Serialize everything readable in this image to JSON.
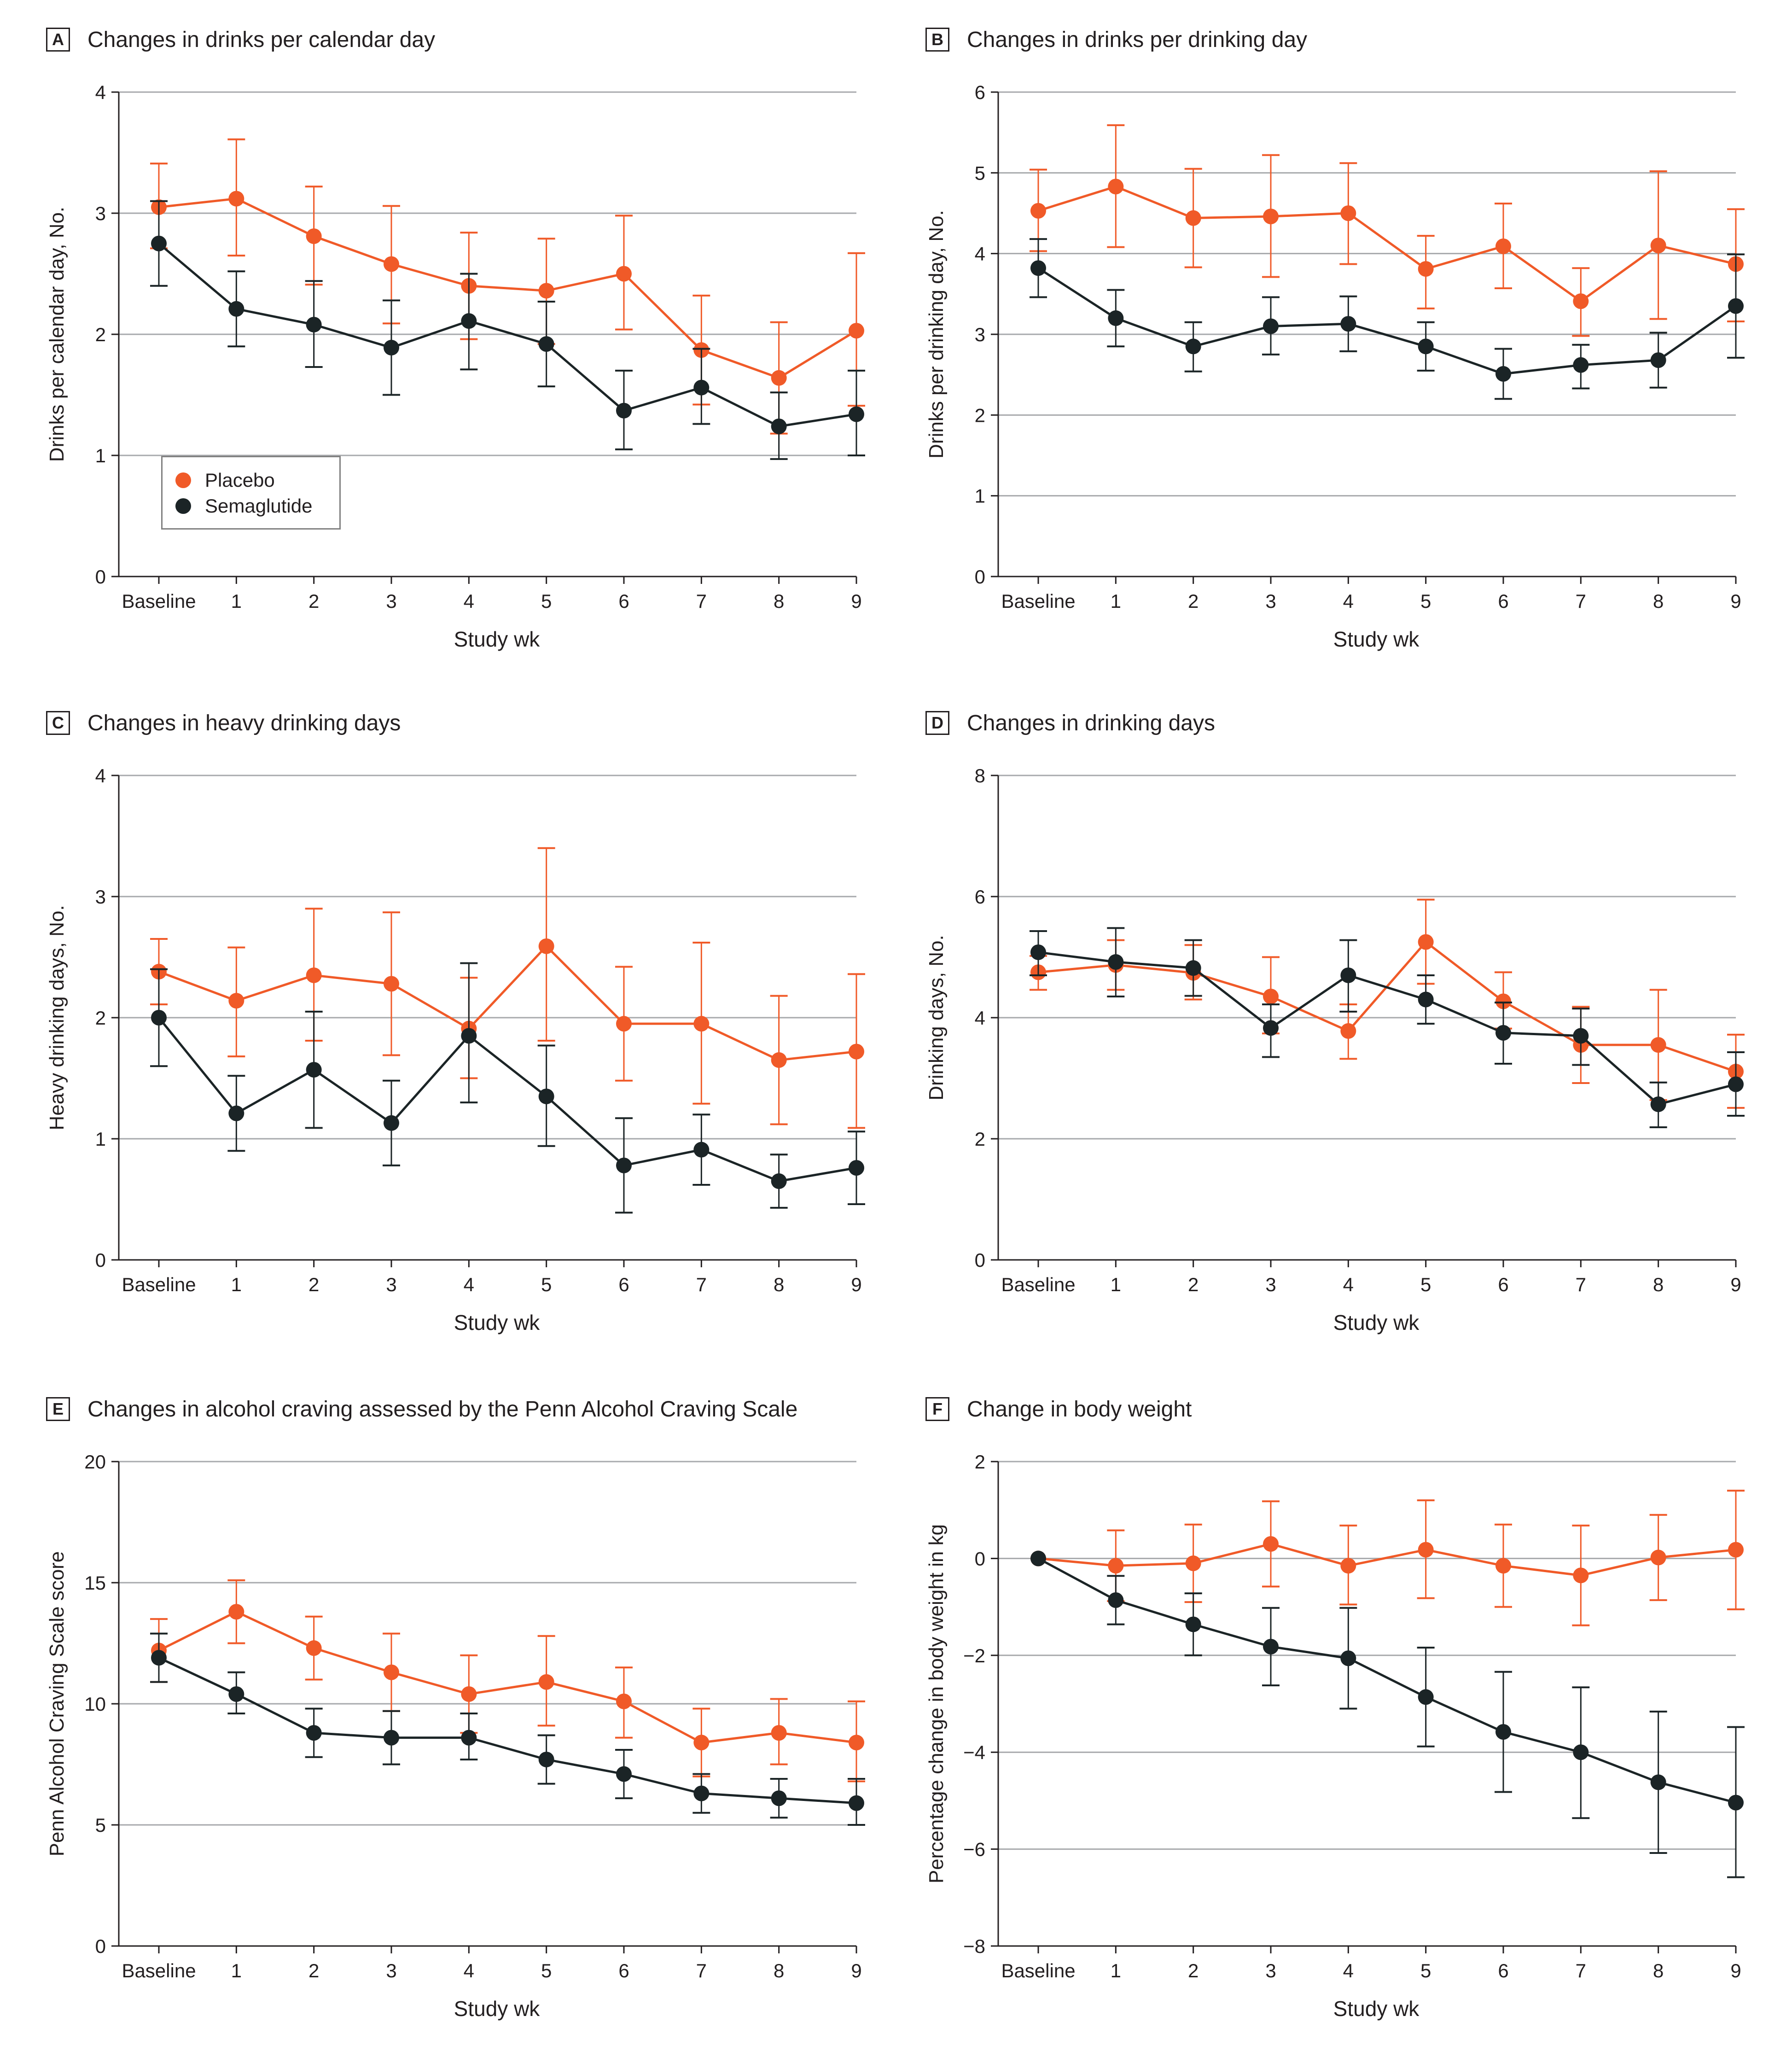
{
  "legend": {
    "placebo": "Placebo",
    "semaglutide": "Semaglutide",
    "colors": {
      "placebo": "#f05a28",
      "semaglutide": "#1b2426"
    }
  },
  "chart_data": [
    {
      "panel": "A",
      "type": "line",
      "title": "Changes in drinks per calendar day",
      "xlabel": "Study wk",
      "ylabel": "Drinks per calendar day, No.",
      "categories": [
        "Baseline",
        "1",
        "2",
        "3",
        "4",
        "5",
        "6",
        "7",
        "8",
        "9"
      ],
      "ylim": [
        0,
        4
      ],
      "yticks": [
        0,
        1,
        2,
        3,
        4
      ],
      "ytick_labels": [
        "0",
        "1",
        "2",
        "3",
        "4"
      ],
      "series": [
        {
          "name": "Placebo",
          "values": [
            3.05,
            3.12,
            2.81,
            2.58,
            2.4,
            2.36,
            2.5,
            1.87,
            1.64,
            2.03
          ],
          "upper": [
            3.41,
            3.61,
            3.22,
            3.06,
            2.84,
            2.79,
            2.98,
            2.32,
            2.1,
            2.67
          ],
          "lower": [
            2.71,
            2.65,
            2.41,
            2.09,
            1.96,
            1.92,
            2.04,
            1.42,
            1.18,
            1.41
          ]
        },
        {
          "name": "Semaglutide",
          "values": [
            2.75,
            2.21,
            2.08,
            1.89,
            2.11,
            1.92,
            1.37,
            1.56,
            1.24,
            1.34
          ],
          "upper": [
            3.1,
            2.52,
            2.44,
            2.28,
            2.5,
            2.27,
            1.7,
            1.88,
            1.52,
            1.7
          ],
          "lower": [
            2.4,
            1.9,
            1.73,
            1.5,
            1.71,
            1.57,
            1.05,
            1.26,
            0.97,
            1.0
          ]
        }
      ]
    },
    {
      "panel": "B",
      "type": "line",
      "title": "Changes in drinks per drinking day",
      "xlabel": "Study wk",
      "ylabel": "Drinks per drinking day, No.",
      "categories": [
        "Baseline",
        "1",
        "2",
        "3",
        "4",
        "5",
        "6",
        "7",
        "8",
        "9"
      ],
      "ylim": [
        0,
        6
      ],
      "yticks": [
        0,
        1,
        2,
        3,
        4,
        5,
        6
      ],
      "ytick_labels": [
        "0",
        "1",
        "2",
        "3",
        "4",
        "5",
        "6"
      ],
      "series": [
        {
          "name": "Placebo",
          "values": [
            4.53,
            4.83,
            4.44,
            4.46,
            4.5,
            3.81,
            4.09,
            3.41,
            4.1,
            3.87
          ],
          "upper": [
            5.04,
            5.59,
            5.05,
            5.22,
            5.12,
            4.22,
            4.62,
            3.82,
            5.02,
            4.55
          ],
          "lower": [
            4.03,
            4.08,
            3.83,
            3.71,
            3.87,
            3.32,
            3.57,
            2.98,
            3.19,
            3.16
          ]
        },
        {
          "name": "Semaglutide",
          "values": [
            3.82,
            3.2,
            2.85,
            3.1,
            3.13,
            2.85,
            2.51,
            2.62,
            2.68,
            3.35
          ],
          "upper": [
            4.18,
            3.55,
            3.15,
            3.46,
            3.47,
            3.15,
            2.82,
            2.87,
            3.02,
            3.99
          ],
          "lower": [
            3.46,
            2.85,
            2.54,
            2.75,
            2.79,
            2.55,
            2.2,
            2.33,
            2.34,
            2.71
          ]
        }
      ]
    },
    {
      "panel": "C",
      "type": "line",
      "title": "Changes in heavy drinking days",
      "xlabel": "Study wk",
      "ylabel": "Heavy drinking days, No.",
      "categories": [
        "Baseline",
        "1",
        "2",
        "3",
        "4",
        "5",
        "6",
        "7",
        "8",
        "9"
      ],
      "ylim": [
        0,
        4
      ],
      "yticks": [
        0,
        1,
        2,
        3,
        4
      ],
      "ytick_labels": [
        "0",
        "1",
        "2",
        "3",
        "4"
      ],
      "series": [
        {
          "name": "Placebo",
          "values": [
            2.38,
            2.14,
            2.35,
            2.28,
            1.91,
            2.59,
            1.95,
            1.95,
            1.65,
            1.72
          ],
          "upper": [
            2.65,
            2.58,
            2.9,
            2.87,
            2.33,
            3.4,
            2.42,
            2.62,
            2.18,
            2.36
          ],
          "lower": [
            2.11,
            1.68,
            1.81,
            1.69,
            1.5,
            1.81,
            1.48,
            1.29,
            1.12,
            1.09
          ]
        },
        {
          "name": "Semaglutide",
          "values": [
            2.0,
            1.21,
            1.57,
            1.13,
            1.85,
            1.35,
            0.78,
            0.91,
            0.65,
            0.76
          ],
          "upper": [
            2.4,
            1.52,
            2.05,
            1.48,
            2.45,
            1.77,
            1.17,
            1.2,
            0.87,
            1.06
          ],
          "lower": [
            1.6,
            0.9,
            1.09,
            0.78,
            1.3,
            0.94,
            0.39,
            0.62,
            0.43,
            0.46
          ]
        }
      ]
    },
    {
      "panel": "D",
      "type": "line",
      "title": "Changes in drinking days",
      "xlabel": "Study wk",
      "ylabel": "Drinking days, No.",
      "categories": [
        "Baseline",
        "1",
        "2",
        "3",
        "4",
        "5",
        "6",
        "7",
        "8",
        "9"
      ],
      "ylim": [
        0,
        8
      ],
      "yticks": [
        0,
        2,
        4,
        6,
        8
      ],
      "ytick_labels": [
        "0",
        "2",
        "4",
        "6",
        "8"
      ],
      "series": [
        {
          "name": "Placebo",
          "values": [
            4.75,
            4.87,
            4.74,
            4.35,
            3.78,
            5.25,
            4.27,
            3.55,
            3.55,
            3.11
          ],
          "upper": [
            5.02,
            5.28,
            5.2,
            5.0,
            4.22,
            5.95,
            4.75,
            4.18,
            4.46,
            3.72
          ],
          "lower": [
            4.46,
            4.46,
            4.3,
            3.74,
            3.32,
            4.56,
            3.82,
            2.92,
            2.64,
            2.51
          ]
        },
        {
          "name": "Semaglutide",
          "values": [
            5.08,
            4.92,
            4.82,
            3.83,
            4.7,
            4.3,
            3.75,
            3.7,
            2.57,
            2.9
          ],
          "upper": [
            5.43,
            5.48,
            5.28,
            4.22,
            5.28,
            4.7,
            4.25,
            4.15,
            2.93,
            3.43
          ],
          "lower": [
            4.7,
            4.35,
            4.36,
            3.35,
            4.1,
            3.9,
            3.24,
            3.22,
            2.19,
            2.38
          ]
        }
      ]
    },
    {
      "panel": "E",
      "type": "line",
      "title": "Changes in alcohol craving assessed by the Penn Alcohol Craving Scale",
      "xlabel": "Study wk",
      "ylabel": "Penn Alcohol Craving Scale score",
      "categories": [
        "Baseline",
        "1",
        "2",
        "3",
        "4",
        "5",
        "6",
        "7",
        "8",
        "9"
      ],
      "ylim": [
        0,
        20
      ],
      "yticks": [
        0,
        5,
        10,
        15,
        20
      ],
      "ytick_labels": [
        "0",
        "5",
        "10",
        "15",
        "20"
      ],
      "series": [
        {
          "name": "Placebo",
          "values": [
            12.2,
            13.8,
            12.3,
            11.3,
            10.4,
            10.9,
            10.1,
            8.4,
            8.8,
            8.4
          ],
          "upper": [
            13.5,
            15.1,
            13.6,
            12.9,
            12.0,
            12.8,
            11.5,
            9.8,
            10.2,
            10.1
          ],
          "lower": [
            10.9,
            12.5,
            11.0,
            9.7,
            8.8,
            9.1,
            8.6,
            7.0,
            7.5,
            6.8
          ]
        },
        {
          "name": "Semaglutide",
          "values": [
            11.9,
            10.4,
            8.8,
            8.6,
            8.6,
            7.7,
            7.1,
            6.3,
            6.1,
            5.9
          ],
          "upper": [
            12.9,
            11.3,
            9.8,
            9.7,
            9.6,
            8.7,
            8.1,
            7.1,
            6.9,
            6.9
          ],
          "lower": [
            10.9,
            9.6,
            7.8,
            7.5,
            7.7,
            6.7,
            6.1,
            5.5,
            5.3,
            5.0
          ]
        }
      ]
    },
    {
      "panel": "F",
      "type": "line",
      "title": "Change in body weight",
      "xlabel": "Study wk",
      "ylabel": "Percentage change in body weight in kg",
      "categories": [
        "Baseline",
        "1",
        "2",
        "3",
        "4",
        "5",
        "6",
        "7",
        "8",
        "9"
      ],
      "ylim": [
        -8,
        2
      ],
      "yticks": [
        -8,
        -6,
        -4,
        -2,
        0,
        2
      ],
      "ytick_labels": [
        "−8",
        "−6",
        "−4",
        "−2",
        "0",
        "2"
      ],
      "series": [
        {
          "name": "Placebo",
          "values": [
            0.0,
            -0.15,
            -0.1,
            0.3,
            -0.15,
            0.18,
            -0.15,
            -0.35,
            0.02,
            0.18
          ],
          "upper": [
            0.0,
            0.58,
            0.7,
            1.18,
            0.68,
            1.2,
            0.7,
            0.68,
            0.9,
            1.4
          ],
          "lower": [
            0.0,
            -0.88,
            -0.9,
            -0.58,
            -0.95,
            -0.82,
            -1.0,
            -1.38,
            -0.86,
            -1.05
          ]
        },
        {
          "name": "Semaglutide",
          "values": [
            0.0,
            -0.86,
            -1.36,
            -1.82,
            -2.06,
            -2.86,
            -3.58,
            -4.0,
            -4.62,
            -5.04
          ],
          "upper": [
            0.0,
            -0.36,
            -0.72,
            -1.02,
            -1.02,
            -1.84,
            -2.34,
            -2.66,
            -3.16,
            -3.48
          ],
          "lower": [
            0.0,
            -1.36,
            -2.0,
            -2.62,
            -3.1,
            -3.88,
            -4.82,
            -5.36,
            -6.08,
            -6.58
          ]
        }
      ]
    }
  ]
}
